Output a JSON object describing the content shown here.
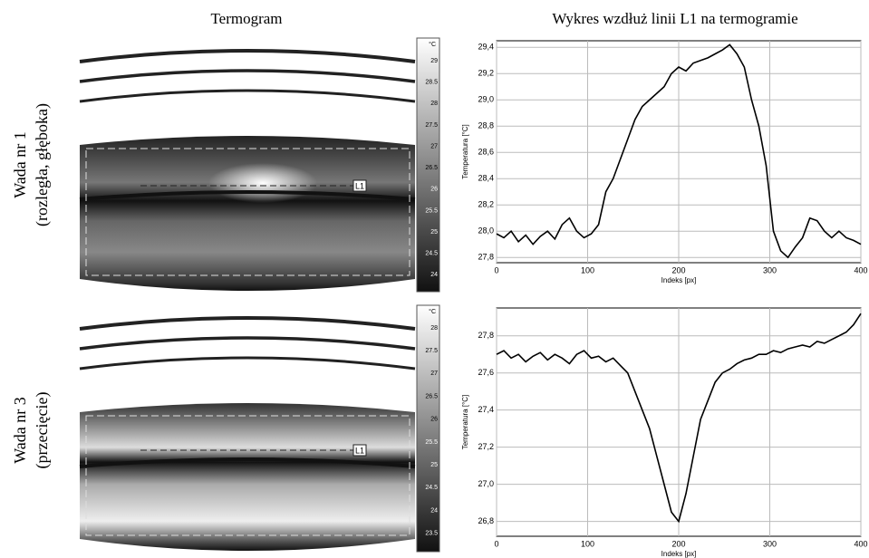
{
  "header": {
    "left": "Termogram",
    "right": "Wykres wzdłuż linii L1 na termogramie"
  },
  "rows": [
    {
      "label": "Wada nr 1",
      "sublabel": "(rozległa, głęboka)"
    },
    {
      "label": "Wada nr 3",
      "sublabel": "(przecięcie)"
    }
  ],
  "thermograms": [
    {
      "unit": "°C",
      "line_label": "L1",
      "scale": [
        "29",
        "28.5",
        "28",
        "27.5",
        "27",
        "26.5",
        "26",
        "25.5",
        "25",
        "24.5",
        "24"
      ]
    },
    {
      "unit": "°C",
      "line_label": "L1",
      "scale": [
        "28",
        "27.5",
        "27",
        "26.5",
        "26",
        "25.5",
        "25",
        "24.5",
        "24",
        "23.5"
      ]
    }
  ],
  "chart_data": [
    {
      "type": "line",
      "x_label": "Indeks [px]",
      "y_label": "Temperatura [°C]",
      "grid": true,
      "x": [
        0,
        8,
        16,
        24,
        32,
        40,
        48,
        56,
        64,
        72,
        80,
        88,
        96,
        104,
        112,
        120,
        128,
        136,
        144,
        152,
        160,
        168,
        176,
        184,
        192,
        200,
        208,
        216,
        224,
        232,
        240,
        248,
        256,
        264,
        272,
        280,
        288,
        296,
        304,
        312,
        320,
        328,
        336,
        344,
        352,
        360,
        368,
        376,
        384,
        392,
        400
      ],
      "series": [
        {
          "color": "#000000",
          "values": [
            27.98,
            27.95,
            28.0,
            27.92,
            27.97,
            27.9,
            27.96,
            28.0,
            27.94,
            28.05,
            28.1,
            28.0,
            27.95,
            27.98,
            28.05,
            28.3,
            28.4,
            28.55,
            28.7,
            28.85,
            28.95,
            29.0,
            29.05,
            29.1,
            29.2,
            29.25,
            29.22,
            29.28,
            29.3,
            29.32,
            29.35,
            29.38,
            29.42,
            29.35,
            29.25,
            29.0,
            28.8,
            28.5,
            28.0,
            27.85,
            27.8,
            27.88,
            27.95,
            28.1,
            28.08,
            28.0,
            27.95,
            28.0,
            27.95,
            27.93,
            27.9
          ]
        }
      ],
      "xlim": [
        0,
        400
      ],
      "xticks": [
        0,
        100,
        200,
        300,
        400
      ],
      "ylim": [
        27.76,
        29.45
      ],
      "yticks": [
        {
          "value": 27.8,
          "label": "27,8"
        },
        {
          "value": 28.0,
          "label": "28,0"
        },
        {
          "value": 28.2,
          "label": "28,2"
        },
        {
          "value": 28.4,
          "label": "28,4"
        },
        {
          "value": 28.6,
          "label": "28,6"
        },
        {
          "value": 28.8,
          "label": "28,8"
        },
        {
          "value": 29.0,
          "label": "29,0"
        },
        {
          "value": 29.2,
          "label": "29,2"
        },
        {
          "value": 29.4,
          "label": "29,4"
        }
      ]
    },
    {
      "type": "line",
      "x_label": "Indeks [px]",
      "y_label": "Temperatura [°C]",
      "grid": true,
      "x": [
        0,
        8,
        16,
        24,
        32,
        40,
        48,
        56,
        64,
        72,
        80,
        88,
        96,
        104,
        112,
        120,
        128,
        136,
        144,
        152,
        160,
        168,
        176,
        184,
        192,
        200,
        208,
        216,
        224,
        232,
        240,
        248,
        256,
        264,
        272,
        280,
        288,
        296,
        304,
        312,
        320,
        328,
        336,
        344,
        352,
        360,
        368,
        376,
        384,
        392,
        400
      ],
      "series": [
        {
          "color": "#000000",
          "values": [
            27.7,
            27.72,
            27.68,
            27.7,
            27.66,
            27.69,
            27.71,
            27.67,
            27.7,
            27.68,
            27.65,
            27.7,
            27.72,
            27.68,
            27.69,
            27.66,
            27.68,
            27.64,
            27.6,
            27.5,
            27.4,
            27.3,
            27.15,
            27.0,
            26.85,
            26.8,
            26.95,
            27.15,
            27.35,
            27.45,
            27.55,
            27.6,
            27.62,
            27.65,
            27.67,
            27.68,
            27.7,
            27.7,
            27.72,
            27.71,
            27.73,
            27.74,
            27.75,
            27.74,
            27.77,
            27.76,
            27.78,
            27.8,
            27.82,
            27.86,
            27.92
          ]
        }
      ],
      "xlim": [
        0,
        400
      ],
      "xticks": [
        0,
        100,
        200,
        300,
        400
      ],
      "ylim": [
        26.72,
        27.95
      ],
      "yticks": [
        {
          "value": 26.8,
          "label": "26,8"
        },
        {
          "value": 27.0,
          "label": "27,0"
        },
        {
          "value": 27.2,
          "label": "27,2"
        },
        {
          "value": 27.4,
          "label": "27,4"
        },
        {
          "value": 27.6,
          "label": "27,6"
        },
        {
          "value": 27.8,
          "label": "27,8"
        }
      ]
    }
  ]
}
